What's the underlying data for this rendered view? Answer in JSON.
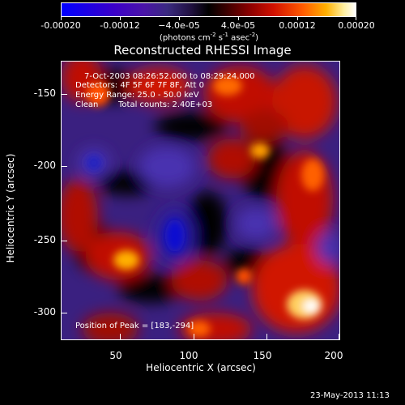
{
  "colorbar": {
    "tick_labels": [
      "-0.00020",
      "-0.00012",
      "−4.0e-05",
      "4.0e-05",
      "0.00012",
      "0.00020"
    ],
    "unit_main": "(photons cm",
    "unit_exp1": "-2",
    "unit_mid": " s",
    "unit_exp2": "-1",
    "unit_tail": " asec",
    "unit_exp3": "-2",
    "unit_close": ")"
  },
  "plot": {
    "title": "Reconstructed RHESSI Image",
    "annotations": {
      "time_range": "7-Oct-2003 08:26:52.000 to 08:29:24.000",
      "detectors": "Detectors: 4F 5F 6F 7F 8F, Att 0",
      "energy_range": "Energy Range: 25.0 - 50.0 keV",
      "clean": "Clean",
      "total_counts": "Total counts: 2.40E+03",
      "peak_position": "Position of Peak = [183,-294]"
    },
    "x_axis": {
      "label": "Heliocentric X (arcsec)",
      "tick_labels": [
        "50",
        "100",
        "150",
        "200"
      ],
      "range": [
        12,
        202
      ]
    },
    "y_axis": {
      "label": "Heliocentric Y (arcsec)",
      "tick_labels": [
        "-150",
        "-200",
        "-250",
        "-300"
      ],
      "range": [
        -327,
        -132
      ]
    },
    "colormap": [
      "blue",
      "purple",
      "black",
      "red",
      "orange",
      "yellow",
      "white"
    ]
  },
  "timestamp": "23-May-2013 11:13"
}
